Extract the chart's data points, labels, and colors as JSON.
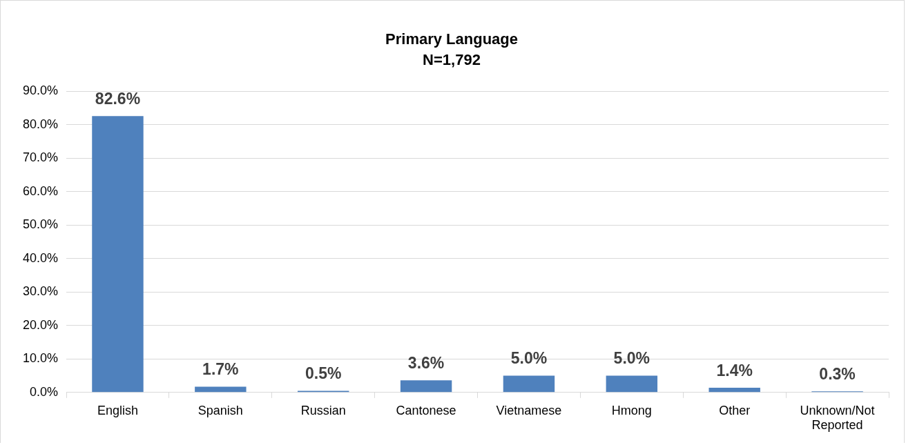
{
  "chart_data": {
    "type": "bar",
    "title": "Primary Language",
    "subtitle": "N=1,792",
    "categories": [
      "English",
      "Spanish",
      "Russian",
      "Cantonese",
      "Vietnamese",
      "Hmong",
      "Other",
      "Unknown/Not Reported"
    ],
    "values": [
      82.6,
      1.7,
      0.5,
      3.6,
      5.0,
      5.0,
      1.4,
      0.3
    ],
    "color": "#4f81bd",
    "ylim": [
      0,
      90
    ],
    "yticks": [
      {
        "value": 0,
        "label": "0.0%"
      },
      {
        "value": 10,
        "label": "10.0%"
      },
      {
        "value": 20,
        "label": "20.0%"
      },
      {
        "value": 30,
        "label": "30.0%"
      },
      {
        "value": 40,
        "label": "40.0%"
      },
      {
        "value": 50,
        "label": "50.0%"
      },
      {
        "value": 60,
        "label": "60.0%"
      },
      {
        "value": 70,
        "label": "70.0%"
      },
      {
        "value": 80,
        "label": "80.0%"
      },
      {
        "value": 90,
        "label": "90.0%"
      }
    ],
    "value_labels": [
      "82.6%",
      "1.7%",
      "0.5%",
      "3.6%",
      "5.0%",
      "5.0%",
      "1.4%",
      "0.3%"
    ],
    "grid": "y"
  }
}
